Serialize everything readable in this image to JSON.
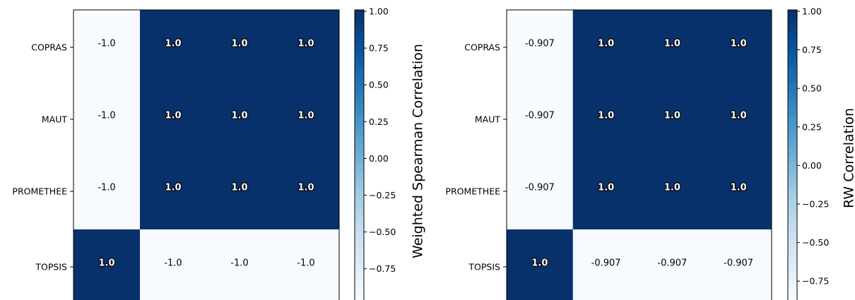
{
  "chart_data": [
    {
      "type": "heatmap",
      "rows": [
        "COPRAS",
        "MAUT",
        "PROMETHEE",
        "TOPSIS"
      ],
      "values": [
        [
          -1.0,
          1.0,
          1.0,
          1.0
        ],
        [
          -1.0,
          1.0,
          1.0,
          1.0
        ],
        [
          -1.0,
          1.0,
          1.0,
          1.0
        ],
        [
          1.0,
          -1.0,
          -1.0,
          -1.0
        ]
      ],
      "cell_labels": [
        [
          "-1.0",
          "1.0",
          "1.0",
          "1.0"
        ],
        [
          "-1.0",
          "1.0",
          "1.0",
          "1.0"
        ],
        [
          "-1.0",
          "1.0",
          "1.0",
          "1.0"
        ],
        [
          "1.0",
          "-1.0",
          "-1.0",
          "-1.0"
        ]
      ],
      "colorbar": {
        "label": "Weighted Spearman Correlation",
        "ticks": [
          "1.00",
          "0.75",
          "0.50",
          "0.25",
          "0.00",
          "−0.25",
          "−0.50",
          "−0.75"
        ],
        "range": [
          -1.0,
          1.0
        ]
      },
      "colormap": "Blues"
    },
    {
      "type": "heatmap",
      "rows": [
        "COPRAS",
        "MAUT",
        "PROMETHEE",
        "TOPSIS"
      ],
      "values": [
        [
          -0.907,
          1.0,
          1.0,
          1.0
        ],
        [
          -0.907,
          1.0,
          1.0,
          1.0
        ],
        [
          -0.907,
          1.0,
          1.0,
          1.0
        ],
        [
          1.0,
          -0.907,
          -0.907,
          -0.907
        ]
      ],
      "cell_labels": [
        [
          "-0.907",
          "1.0",
          "1.0",
          "1.0"
        ],
        [
          "-0.907",
          "1.0",
          "1.0",
          "1.0"
        ],
        [
          "-0.907",
          "1.0",
          "1.0",
          "1.0"
        ],
        [
          "1.0",
          "-0.907",
          "-0.907",
          "-0.907"
        ]
      ],
      "colorbar": {
        "label": "RW Correlation",
        "ticks": [
          "1.00",
          "0.75",
          "0.50",
          "0.25",
          "0.00",
          "−0.25",
          "−0.50",
          "−0.75"
        ],
        "range": [
          -0.907,
          1.0
        ]
      },
      "colormap": "Blues"
    }
  ],
  "colors": {
    "high": "#08306b",
    "mid": "#4292c6",
    "low": "#f7fbff",
    "axis": "#000000"
  }
}
